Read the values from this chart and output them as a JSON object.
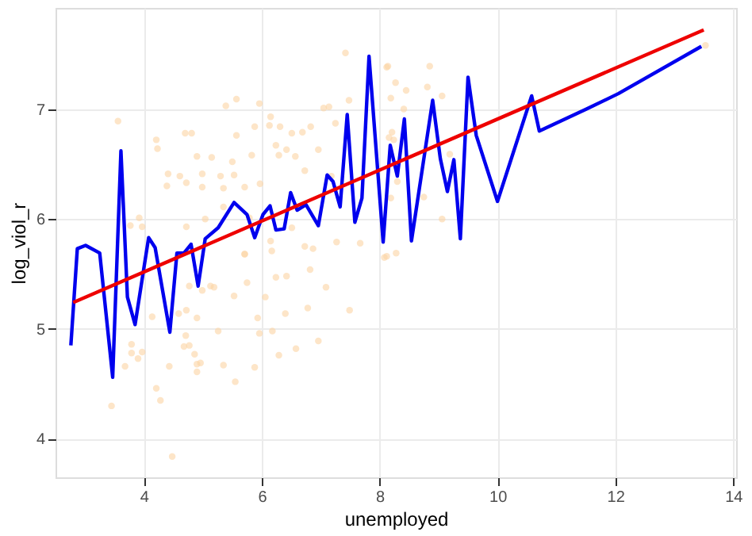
{
  "chart_data": {
    "type": "scatter",
    "xlabel": "unemployed",
    "ylabel": "log_viol_r",
    "xlim": [
      2.5,
      14.05
    ],
    "ylim": [
      3.65,
      7.92
    ],
    "xticks": [
      4,
      6,
      8,
      10,
      12,
      14
    ],
    "yticks": [
      4,
      5,
      6,
      7
    ],
    "grid": true,
    "series": [
      {
        "color": "#fcd3a3",
        "marker": "circle",
        "x": [
          3.56,
          4.21,
          4.23,
          4.7,
          4.81,
          5.39,
          5.57,
          5.96,
          4.9,
          5.15,
          5.5,
          5.57,
          5.88,
          6.15,
          6.13,
          6.31,
          6.51,
          6.69,
          6.83,
          7.05,
          7.14,
          7.42,
          7.48,
          7.25,
          8.12,
          6.24,
          6.42,
          6.57,
          6.73,
          6.96,
          7.18,
          4.61,
          4.41,
          4.99,
          5.3,
          5.53,
          4.39,
          4.72,
          4.99,
          5.35,
          5.71,
          5.97,
          5.83,
          6.29,
          3.92,
          3.97,
          3.77,
          4.72,
          5.04,
          5.35,
          5.79,
          6.15,
          6.51,
          6.73,
          5.71,
          6.87,
          7.27,
          7.67,
          8.16,
          8.14,
          8.85,
          8.27,
          8.19,
          8.45,
          8.81,
          9.06,
          8.41,
          8.21,
          8.24,
          9.19,
          8.3,
          8.19,
          8.75,
          9.06,
          8.28,
          8.08,
          13.53,
          4.77,
          4.72,
          5.13,
          5.19,
          4.99,
          4.14,
          4.59,
          4.9,
          4.71,
          4.77,
          4.68,
          4.86,
          4.9,
          4.96,
          4.9,
          3.79,
          3.79,
          3.9,
          3.97,
          3.68,
          4.43,
          4.21,
          4.28,
          3.45,
          4.48,
          5.26,
          5.35,
          5.55,
          5.88,
          5.93,
          5.96,
          6.18,
          6.29,
          6.58,
          6.96,
          5.53,
          6.06,
          6.4,
          6.78,
          7.09,
          7.49,
          5.75,
          6.24,
          6.42,
          6.82,
          5.71,
          6.17,
          8.12
        ],
        "values": [
          6.89,
          6.72,
          6.64,
          6.78,
          6.78,
          7.03,
          7.09,
          7.05,
          6.57,
          6.56,
          6.52,
          6.76,
          6.84,
          6.93,
          6.85,
          6.84,
          6.78,
          6.79,
          6.84,
          7.01,
          7.02,
          7.51,
          7.08,
          6.87,
          7.38,
          6.67,
          6.63,
          6.57,
          6.44,
          6.63,
          6.39,
          6.39,
          6.41,
          6.41,
          6.39,
          6.4,
          6.3,
          6.33,
          6.29,
          6.28,
          6.29,
          6.32,
          6.58,
          6.58,
          6.01,
          5.93,
          5.94,
          5.93,
          6.0,
          6.11,
          6.01,
          5.8,
          5.92,
          5.75,
          5.68,
          5.73,
          5.79,
          5.78,
          6.74,
          7.39,
          7.39,
          7.24,
          7.1,
          7.17,
          7.2,
          7.12,
          7.0,
          6.79,
          6.72,
          6.59,
          6.34,
          6.19,
          6.2,
          6.0,
          5.69,
          5.65,
          7.58,
          5.39,
          5.17,
          5.39,
          5.38,
          5.35,
          5.11,
          5.14,
          5.1,
          4.94,
          4.85,
          4.84,
          4.77,
          4.68,
          4.69,
          4.61,
          4.86,
          4.78,
          4.73,
          4.79,
          4.66,
          4.66,
          4.46,
          4.35,
          4.3,
          3.84,
          4.98,
          4.67,
          4.52,
          4.65,
          5.1,
          4.96,
          4.98,
          4.76,
          4.82,
          4.89,
          5.3,
          5.29,
          5.14,
          5.19,
          5.38,
          5.17,
          5.42,
          5.47,
          5.48,
          5.54,
          5.68,
          5.71,
          5.66
        ]
      },
      {
        "type": "line",
        "color": "#0000ee",
        "marker": "none",
        "line_style": "solid",
        "x": [
          2.76,
          2.87,
          3.01,
          3.25,
          3.47,
          3.61,
          3.72,
          3.85,
          4.08,
          4.19,
          4.44,
          4.56,
          4.68,
          4.8,
          4.92,
          5.04,
          5.26,
          5.53,
          5.75,
          5.88,
          6.02,
          6.14,
          6.24,
          6.38,
          6.49,
          6.6,
          6.75,
          6.96,
          7.11,
          7.21,
          7.33,
          7.45,
          7.58,
          7.7,
          7.82,
          8.06,
          8.18,
          8.3,
          8.42,
          8.54,
          8.9,
          9.03,
          9.15,
          9.26,
          9.37,
          9.5,
          9.64,
          10.0,
          10.58,
          10.71,
          11.51,
          12.05,
          13.46
        ],
        "values": [
          4.85,
          5.73,
          5.76,
          5.69,
          4.56,
          6.62,
          5.29,
          5.04,
          5.83,
          5.74,
          4.97,
          5.69,
          5.69,
          5.77,
          5.39,
          5.82,
          5.92,
          6.15,
          6.04,
          5.83,
          6.04,
          6.12,
          5.9,
          5.91,
          6.24,
          6.08,
          6.13,
          5.94,
          6.4,
          6.34,
          6.11,
          6.95,
          5.97,
          6.19,
          7.48,
          5.79,
          6.67,
          6.39,
          6.91,
          5.8,
          7.08,
          6.55,
          6.25,
          6.54,
          5.82,
          7.29,
          6.76,
          6.16,
          7.12,
          6.8,
          7.0,
          7.14,
          7.57
        ]
      },
      {
        "type": "line",
        "color": "#ee0000",
        "marker": "none",
        "line_style": "solid",
        "x": [
          2.8,
          13.5
        ],
        "values": [
          5.24,
          7.72
        ]
      }
    ]
  }
}
